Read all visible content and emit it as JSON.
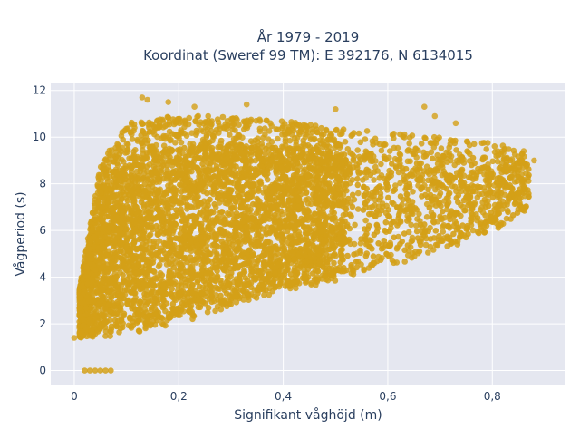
{
  "chart_data": {
    "type": "scatter",
    "title": "År 1979 - 2019",
    "subtitle": "Koordinat (Sweref 99 TM): E 392176, N 6134015",
    "xlabel": "Signifikant våghöjd (m)",
    "ylabel": "Vågperiod (s)",
    "xlim": [
      -0.045,
      0.94
    ],
    "ylim": [
      -0.6,
      12.3
    ],
    "x_ticks": [
      0,
      0.2,
      0.4,
      0.6,
      0.8
    ],
    "x_tick_labels": [
      "0",
      "0,2",
      "0,4",
      "0,6",
      "0,8"
    ],
    "y_ticks": [
      0,
      2,
      4,
      6,
      8,
      10,
      12
    ],
    "y_tick_labels": [
      "0",
      "2",
      "4",
      "6",
      "8",
      "10",
      "12"
    ],
    "grid": true,
    "legend": "none",
    "marker_color": "#d4a017",
    "plot_background": "#e5e7f0",
    "envelope": {
      "description_points": "approximate density envelope of the point cloud",
      "lower": [
        [
          0.01,
          1.3
        ],
        [
          0.08,
          1.3
        ],
        [
          0.2,
          1.8
        ],
        [
          0.3,
          2.6
        ],
        [
          0.4,
          3.2
        ],
        [
          0.5,
          3.7
        ],
        [
          0.6,
          4.3
        ],
        [
          0.7,
          5.0
        ],
        [
          0.8,
          5.8
        ],
        [
          0.87,
          6.9
        ]
      ],
      "upper": [
        [
          0.01,
          3.5
        ],
        [
          0.05,
          8.8
        ],
        [
          0.1,
          10.6
        ],
        [
          0.2,
          11.0
        ],
        [
          0.3,
          10.9
        ],
        [
          0.4,
          10.7
        ],
        [
          0.5,
          10.4
        ],
        [
          0.6,
          10.2
        ],
        [
          0.7,
          10.0
        ],
        [
          0.8,
          9.8
        ],
        [
          0.87,
          9.4
        ]
      ]
    },
    "zero_period_points": [
      [
        0.02,
        0
      ],
      [
        0.03,
        0
      ],
      [
        0.04,
        0
      ],
      [
        0.05,
        0
      ],
      [
        0.06,
        0
      ],
      [
        0.07,
        0
      ]
    ],
    "outliers": [
      [
        0.13,
        11.7
      ],
      [
        0.14,
        11.6
      ],
      [
        0.18,
        11.5
      ],
      [
        0.23,
        11.3
      ],
      [
        0.33,
        11.4
      ],
      [
        0.5,
        11.2
      ],
      [
        0.67,
        11.3
      ],
      [
        0.69,
        10.9
      ],
      [
        0.73,
        10.6
      ],
      [
        0.86,
        9.4
      ],
      [
        0.88,
        9.0
      ],
      [
        0.0,
        1.4
      ],
      [
        0.01,
        1.6
      ]
    ]
  }
}
